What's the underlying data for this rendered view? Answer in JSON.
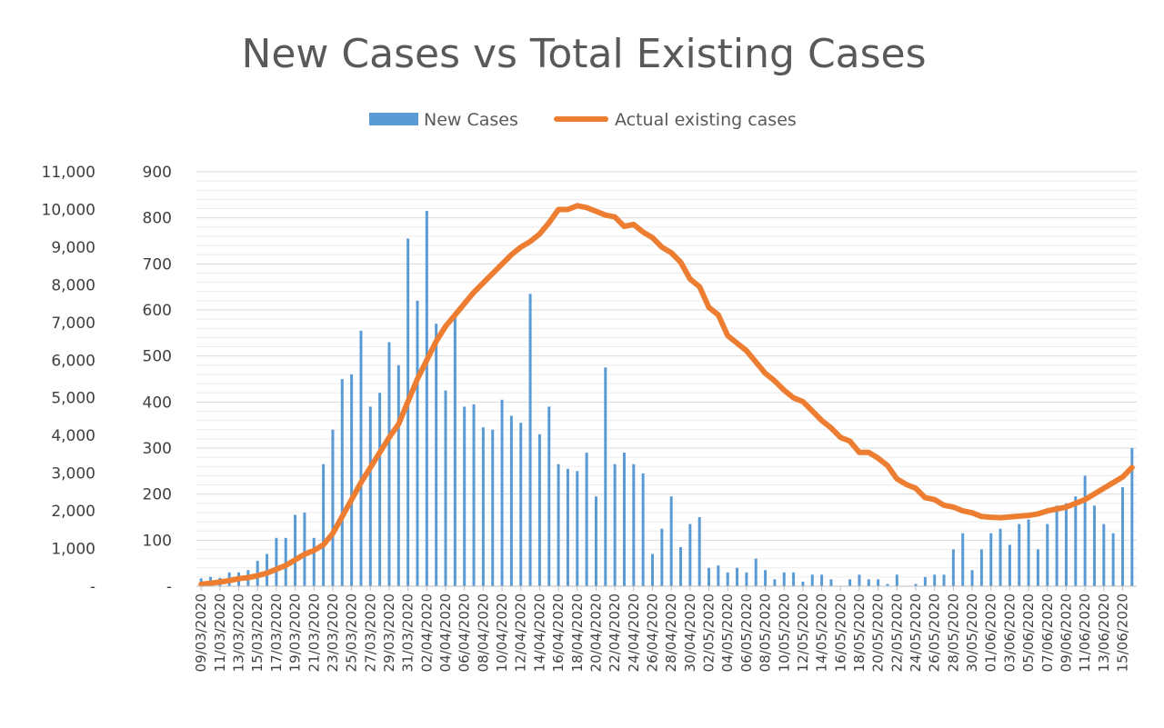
{
  "chart_data": {
    "type": "bar",
    "title": "New Cases vs Total Existing Cases",
    "legend_position": "top",
    "grid": true,
    "colors": {
      "new_cases": "#5b9bd5",
      "existing": "#ed7d31",
      "grid": "#d9d9d9",
      "axis": "#bfbfbf"
    },
    "y_left": {
      "ylim": [
        0,
        11000
      ],
      "ticks": [
        "-",
        "1,000",
        "2,000",
        "3,000",
        "4,000",
        "5,000",
        "6,000",
        "7,000",
        "8,000",
        "9,000",
        "10,000",
        "11,000"
      ]
    },
    "y_right": {
      "ylim": [
        0,
        900
      ],
      "ticks": [
        "-",
        "100",
        "200",
        "300",
        "400",
        "500",
        "600",
        "700",
        "800",
        "900"
      ]
    },
    "x_tick_labels": [
      "09/03/2020",
      "11/03/2020",
      "13/03/2020",
      "15/03/2020",
      "17/03/2020",
      "19/03/2020",
      "21/03/2020",
      "23/03/2020",
      "25/03/2020",
      "27/03/2020",
      "29/03/2020",
      "31/03/2020",
      "02/04/2020",
      "04/04/2020",
      "06/04/2020",
      "08/04/2020",
      "10/04/2020",
      "12/04/2020",
      "14/04/2020",
      "16/04/2020",
      "18/04/2020",
      "20/04/2020",
      "22/04/2020",
      "24/04/2020",
      "26/04/2020",
      "28/04/2020",
      "30/04/2020",
      "02/05/2020",
      "04/05/2020",
      "06/05/2020",
      "08/05/2020",
      "10/05/2020",
      "12/05/2020",
      "14/05/2020",
      "16/05/2020",
      "18/05/2020",
      "20/05/2020",
      "22/05/2020",
      "24/05/2020",
      "26/05/2020",
      "28/05/2020",
      "30/05/2020",
      "01/06/2020",
      "03/06/2020",
      "05/06/2020",
      "07/06/2020",
      "09/06/2020",
      "11/06/2020",
      "13/06/2020",
      "15/06/2020"
    ],
    "series": [
      {
        "name": "New Cases",
        "type": "bar",
        "axis": "right",
        "values": [
          17,
          20,
          18,
          30,
          30,
          35,
          55,
          70,
          105,
          105,
          155,
          160,
          105,
          265,
          340,
          450,
          460,
          555,
          390,
          420,
          530,
          480,
          755,
          620,
          815,
          570,
          425,
          595,
          390,
          395,
          345,
          340,
          405,
          370,
          355,
          635,
          330,
          390,
          265,
          255,
          250,
          290,
          195,
          475,
          265,
          290,
          265,
          245,
          70,
          125,
          195,
          85,
          135,
          150,
          40,
          45,
          30,
          40,
          30,
          60,
          35,
          15,
          30,
          30,
          10,
          25,
          25,
          15,
          0,
          15,
          25,
          15,
          15,
          5,
          25,
          0,
          5,
          20,
          25,
          25,
          80,
          115,
          35,
          80,
          115,
          125,
          90,
          135,
          145,
          80,
          135,
          175,
          180,
          195,
          240,
          175,
          135,
          115,
          215,
          300
        ]
      },
      {
        "name": "Actual existing cases",
        "type": "line",
        "axis": "left",
        "values": [
          50,
          80,
          110,
          150,
          200,
          230,
          280,
          350,
          450,
          550,
          700,
          850,
          950,
          1100,
          1400,
          1850,
          2300,
          2750,
          3150,
          3550,
          3950,
          4300,
          4900,
          5500,
          6000,
          6500,
          6900,
          7200,
          7500,
          7800,
          8050,
          8300,
          8550,
          8800,
          9000,
          9150,
          9350,
          9650,
          10000,
          10000,
          10100,
          10050,
          9950,
          9850,
          9800,
          9550,
          9600,
          9400,
          9250,
          9000,
          8850,
          8600,
          8150,
          7950,
          7400,
          7200,
          6650,
          6450,
          6250,
          5950,
          5650,
          5450,
          5200,
          5000,
          4900,
          4650,
          4400,
          4200,
          3950,
          3850,
          3550,
          3550,
          3400,
          3200,
          2850,
          2700,
          2600,
          2350,
          2300,
          2150,
          2100,
          2000,
          1950,
          1850,
          1830,
          1820,
          1840,
          1860,
          1880,
          1920,
          2000,
          2050,
          2100,
          2200,
          2300,
          2450,
          2600,
          2750,
          2900,
          3150
        ]
      }
    ]
  }
}
